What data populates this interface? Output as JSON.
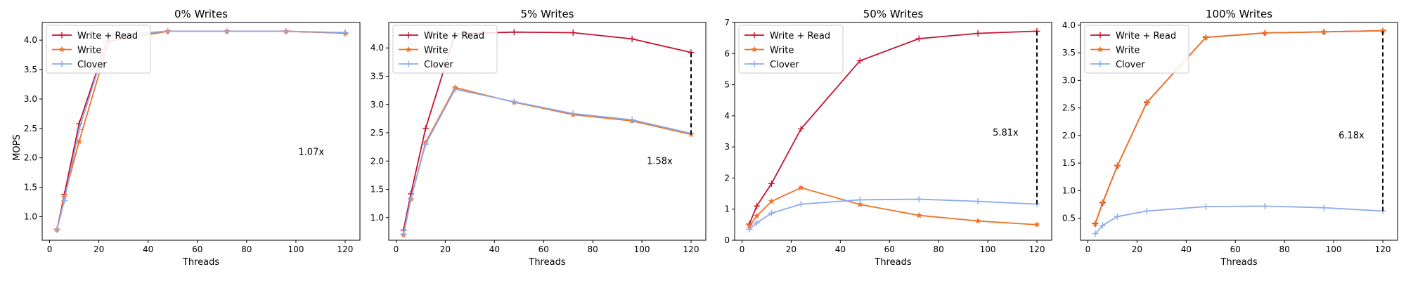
{
  "figure": {
    "ylabel": "MOPS",
    "xlabel": "Threads"
  },
  "legend_labels": [
    "Write + Read",
    "Write",
    "Clover"
  ],
  "colors": {
    "Write + Read": "#c8102e",
    "Write": "#ee7326",
    "Clover": "#8cabee"
  },
  "chart_data": [
    {
      "type": "line",
      "title": "0% Writes",
      "xlabel": "Threads",
      "ylabel": "MOPS",
      "xlim": [
        -3,
        126
      ],
      "ylim": [
        0.6,
        4.3
      ],
      "xticks": [
        0,
        20,
        40,
        60,
        80,
        100,
        120
      ],
      "yticks": [
        1.0,
        1.5,
        2.0,
        2.5,
        3.0,
        3.5,
        4.0
      ],
      "legend": "top-left",
      "x": [
        3,
        6,
        12,
        24,
        48,
        72,
        96,
        120
      ],
      "series": [
        {
          "name": "Write + Read",
          "values": [
            0.78,
            1.38,
            2.58,
            4.08,
            4.15,
            4.15,
            4.15,
            4.12
          ]
        },
        {
          "name": "Write",
          "values": [
            0.78,
            1.33,
            2.28,
            3.98,
            4.15,
            4.15,
            4.15,
            4.12
          ]
        },
        {
          "name": "Clover",
          "values": [
            0.78,
            1.27,
            2.48,
            4.08,
            4.15,
            4.15,
            4.15,
            4.13
          ]
        }
      ],
      "annotation": {
        "text": "1.07x",
        "x": 101,
        "y": 2.1,
        "bracket": null
      }
    },
    {
      "type": "line",
      "title": "5% Writes",
      "xlabel": "Threads",
      "ylim": [
        0.6,
        4.45
      ],
      "xlim": [
        -3,
        126
      ],
      "xticks": [
        0,
        20,
        40,
        60,
        80,
        100,
        120
      ],
      "yticks": [
        1.0,
        1.5,
        2.0,
        2.5,
        3.0,
        3.5,
        4.0
      ],
      "legend": "top-left",
      "x": [
        3,
        6,
        12,
        24,
        48,
        72,
        96,
        120
      ],
      "series": [
        {
          "name": "Write + Read",
          "values": [
            0.78,
            1.42,
            2.58,
            4.25,
            4.28,
            4.27,
            4.16,
            3.92
          ]
        },
        {
          "name": "Write",
          "values": [
            0.7,
            1.33,
            2.33,
            3.3,
            3.04,
            2.82,
            2.71,
            2.47
          ]
        },
        {
          "name": "Clover",
          "values": [
            0.7,
            1.33,
            2.3,
            3.27,
            3.05,
            2.84,
            2.73,
            2.49
          ]
        }
      ],
      "annotation": {
        "text": "1.58x",
        "x": 102,
        "y": 2.0,
        "bracket": [
          2.47,
          3.92
        ]
      }
    },
    {
      "type": "line",
      "title": "50% Writes",
      "xlabel": "Threads",
      "ylim": [
        0,
        7
      ],
      "xlim": [
        -3,
        126
      ],
      "xticks": [
        0,
        20,
        40,
        60,
        80,
        100,
        120
      ],
      "yticks": [
        0,
        1,
        2,
        3,
        4,
        5,
        6,
        7
      ],
      "legend": "top-left",
      "x": [
        3,
        6,
        12,
        24,
        48,
        72,
        96,
        120
      ],
      "series": [
        {
          "name": "Write + Read",
          "values": [
            0.52,
            1.1,
            1.82,
            3.58,
            5.77,
            6.48,
            6.65,
            6.72
          ]
        },
        {
          "name": "Write",
          "values": [
            0.45,
            0.78,
            1.25,
            1.69,
            1.15,
            0.8,
            0.62,
            0.5
          ]
        },
        {
          "name": "Clover",
          "values": [
            0.35,
            0.56,
            0.87,
            1.16,
            1.3,
            1.32,
            1.25,
            1.16
          ]
        }
      ],
      "annotation": {
        "text": "5.81x",
        "x": 102,
        "y": 3.45,
        "bracket": [
          1.16,
          6.72
        ]
      }
    },
    {
      "type": "line",
      "title": "100% Writes",
      "xlabel": "Threads",
      "ylim": [
        0.1,
        4.05
      ],
      "xlim": [
        -3,
        126
      ],
      "xticks": [
        0,
        20,
        40,
        60,
        80,
        100,
        120
      ],
      "yticks": [
        0.5,
        1.0,
        1.5,
        2.0,
        2.5,
        3.0,
        3.5,
        4.0
      ],
      "legend": "top-left",
      "x": [
        3,
        6,
        12,
        24,
        48,
        72,
        96,
        120
      ],
      "series": [
        {
          "name": "Write + Read",
          "values": [
            0.4,
            0.78,
            1.45,
            2.6,
            3.78,
            3.86,
            3.88,
            3.9
          ]
        },
        {
          "name": "Write",
          "values": [
            0.4,
            0.78,
            1.45,
            2.6,
            3.78,
            3.86,
            3.88,
            3.9
          ]
        },
        {
          "name": "Clover",
          "values": [
            0.22,
            0.37,
            0.53,
            0.63,
            0.71,
            0.72,
            0.69,
            0.63
          ]
        }
      ],
      "annotation": {
        "text": "6.18x",
        "x": 102,
        "y": 2.0,
        "bracket": [
          0.63,
          3.9
        ]
      }
    }
  ]
}
